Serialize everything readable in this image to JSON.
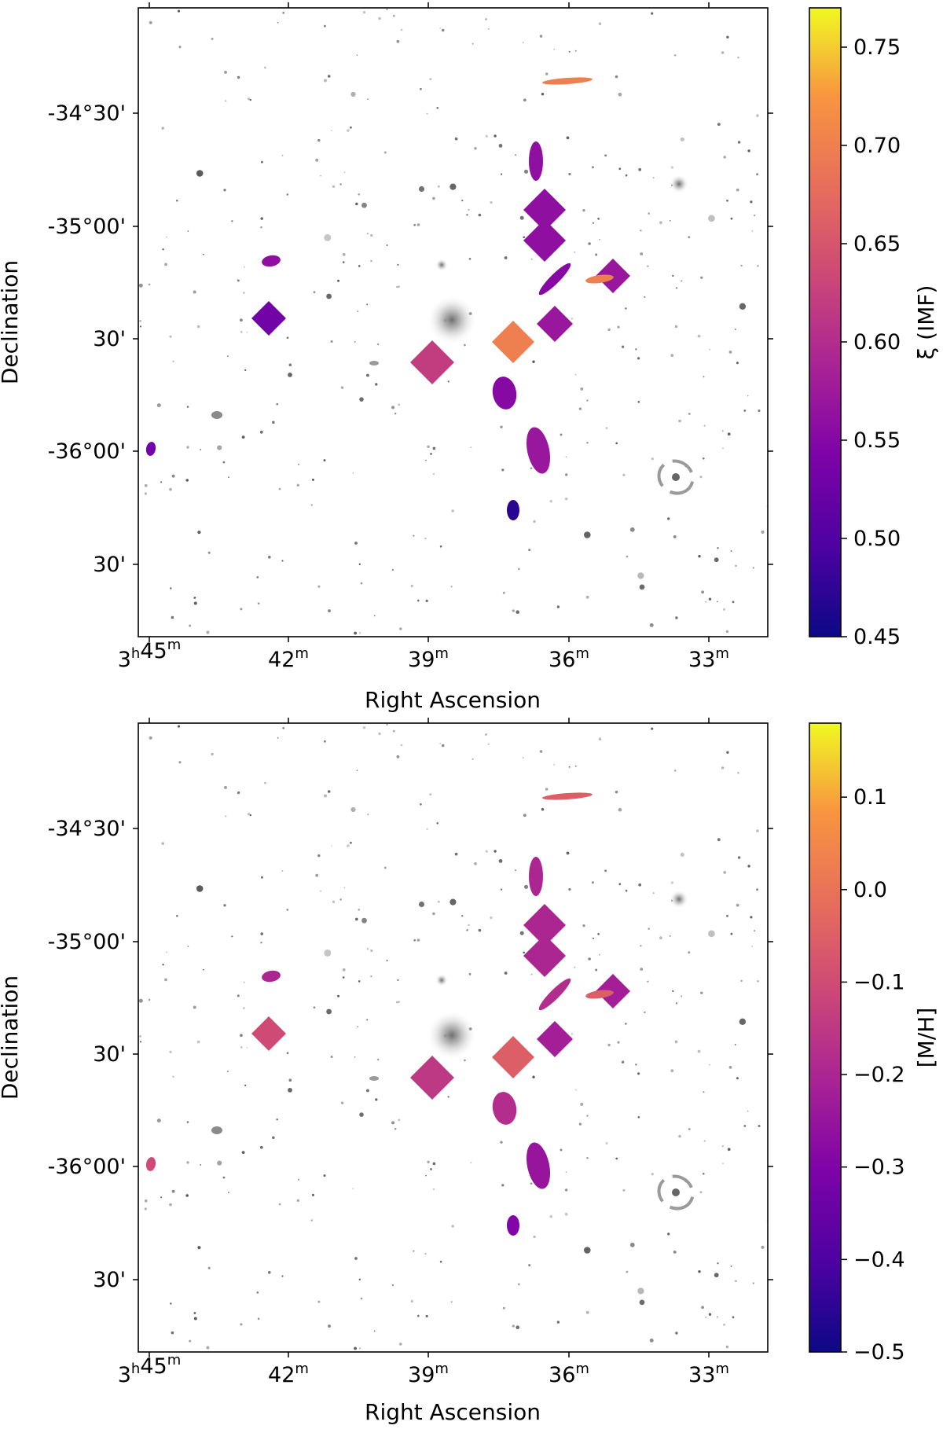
{
  "chart_data": [
    {
      "type": "heatmap",
      "title": "",
      "xlabel": "Right Ascension",
      "ylabel": "Declination",
      "x_ticks": [
        {
          "value": "3h45m",
          "main": "3",
          "sup1": "h",
          "mid": "45",
          "sup2": "m"
        },
        {
          "value": "42m",
          "main": "42",
          "sup2": "m"
        },
        {
          "value": "39m",
          "main": "39",
          "sup2": "m"
        },
        {
          "value": "36m",
          "main": "36",
          "sup2": "m"
        },
        {
          "value": "33m",
          "main": "33",
          "sup2": "m"
        }
      ],
      "y_ticks": [
        "-34°30'",
        "-35°00'",
        "30'",
        "-36°00'",
        "30'"
      ],
      "colorbar": {
        "label": "ξ (IMF)",
        "range": [
          0.45,
          0.77
        ],
        "ticks": [
          "0.75",
          "0.70",
          "0.65",
          "0.60",
          "0.55",
          "0.50",
          "0.45"
        ],
        "tick_values": [
          0.75,
          0.7,
          0.65,
          0.6,
          0.55,
          0.5,
          0.45
        ],
        "colormap": "plasma"
      },
      "fields": [
        {
          "id": "NGC1351",
          "value": 0.56
        },
        {
          "id": "NGC1380A",
          "value": 0.57
        },
        {
          "id": "NGC1380",
          "value": 0.62
        },
        {
          "id": "NGC1387",
          "value": 0.55
        },
        {
          "id": "NGC1399",
          "value": 0.57
        },
        {
          "id": "NGC1404",
          "value": 0.7
        },
        {
          "id": "NGC1427",
          "value": 0.53
        },
        {
          "id": "NGC1374",
          "value": 0.47
        }
      ]
    },
    {
      "type": "heatmap",
      "title": "",
      "xlabel": "Right Ascension",
      "ylabel": "Declination",
      "x_ticks": [
        {
          "value": "3h45m",
          "main": "3",
          "sup1": "h",
          "mid": "45",
          "sup2": "m"
        },
        {
          "value": "42m",
          "main": "42",
          "sup2": "m"
        },
        {
          "value": "39m",
          "main": "39",
          "sup2": "m"
        },
        {
          "value": "36m",
          "main": "36",
          "sup2": "m"
        },
        {
          "value": "33m",
          "main": "33",
          "sup2": "m"
        }
      ],
      "y_ticks": [
        "-34°30'",
        "-35°00'",
        "30'",
        "-36°00'",
        "30'"
      ],
      "colorbar": {
        "label": "[M/H]",
        "range": [
          -0.5,
          0.18
        ],
        "ticks": [
          "0.1",
          "0.0",
          "−0.1",
          "−0.2",
          "−0.3",
          "−0.4",
          "−0.5"
        ],
        "tick_values": [
          0.1,
          0.0,
          -0.1,
          -0.2,
          -0.3,
          -0.4,
          -0.5
        ],
        "colormap": "plasma"
      },
      "fields": [
        {
          "id": "NGC1351",
          "value": -0.2
        },
        {
          "id": "NGC1380A",
          "value": -0.25
        },
        {
          "id": "NGC1380",
          "value": -0.15
        },
        {
          "id": "NGC1387",
          "value": -0.18
        },
        {
          "id": "NGC1399",
          "value": -0.22
        },
        {
          "id": "NGC1404",
          "value": -0.05
        },
        {
          "id": "NGC1427",
          "value": -0.1
        },
        {
          "id": "NGC1374",
          "value": -0.3
        }
      ]
    }
  ]
}
